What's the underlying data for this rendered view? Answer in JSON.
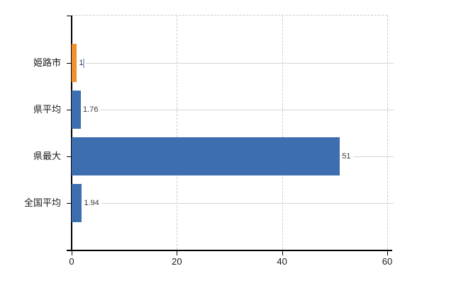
{
  "chart_data": {
    "type": "bar",
    "orientation": "horizontal",
    "title": "",
    "categories": [
      "姫路市",
      "県平均",
      "県最大",
      "全国平均"
    ],
    "values": [
      1,
      1.76,
      51,
      1.94
    ],
    "value_labels": [
      "1",
      "1.76",
      "51",
      "1.94"
    ],
    "highlight_index": 0,
    "bar_color_highlight": "#F0912D",
    "bar_color_default": "#3C6EB0",
    "xlim": [
      0,
      60
    ],
    "x_ticks": [
      0,
      20,
      40,
      60
    ],
    "x_tick_labels": [
      "0",
      "20",
      "40",
      "60"
    ],
    "grid": "vertical-dashed",
    "legend": "none"
  },
  "colors": {
    "background": "#ffffff",
    "axis": "#000000",
    "gridline_dashed": "#cccccc",
    "leader_line": "#d2d8d0",
    "value_label": "#3a3a3a",
    "category_label": "#1a1a1a",
    "tick_label": "#1a1a1a",
    "cursor": "#9fb3d8"
  }
}
